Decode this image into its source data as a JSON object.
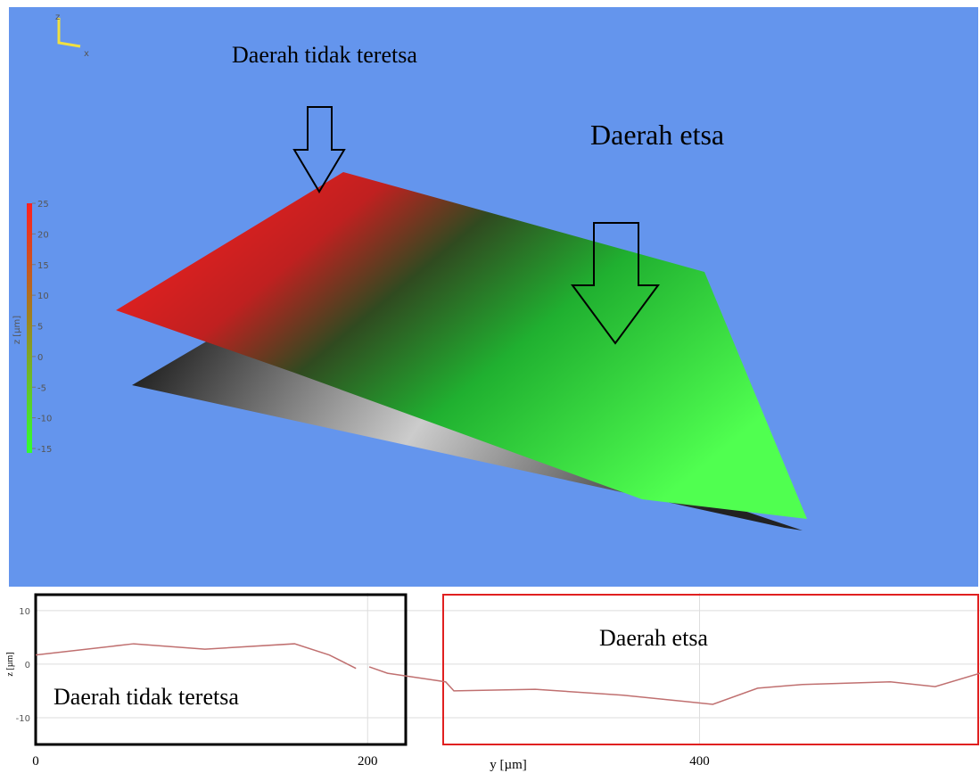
{
  "chart_data": [
    {
      "type": "surface",
      "annotations": [
        "Daerah tidak teretsa",
        "Daerah etsa"
      ],
      "axes_triad": [
        "z",
        "x"
      ],
      "colorbar": {
        "label": "z [µm]",
        "ylim": [
          -15,
          25
        ],
        "yticks": [
          25,
          20,
          15,
          10,
          5,
          0,
          -5,
          -10,
          -15
        ]
      }
    },
    {
      "type": "line",
      "annotations": [
        "Daerah tidak teretsa",
        "Daerah etsa"
      ],
      "xlabel": "y [µm]",
      "ylabel": "z [µm]",
      "x": [
        0,
        59,
        102,
        156,
        177,
        193,
        197,
        201,
        212,
        247,
        252,
        301,
        354,
        408,
        435,
        462,
        515,
        542,
        569
      ],
      "series": [
        {
          "color": "#c07070",
          "values": [
            1.7,
            3.8,
            2.8,
            3.8,
            1.7,
            -0.8,
            null,
            -0.5,
            -1.7,
            -3.3,
            -5,
            -4.7,
            -5.8,
            -7.5,
            -4.5,
            -3.8,
            -3.3,
            -4.2,
            -1.7
          ]
        }
      ],
      "xlim": [
        0,
        569
      ],
      "ylim": [
        -15,
        13.3
      ],
      "xticks": [
        0,
        200,
        400
      ],
      "yticks": [
        10,
        0,
        -10
      ],
      "grid": true
    }
  ]
}
